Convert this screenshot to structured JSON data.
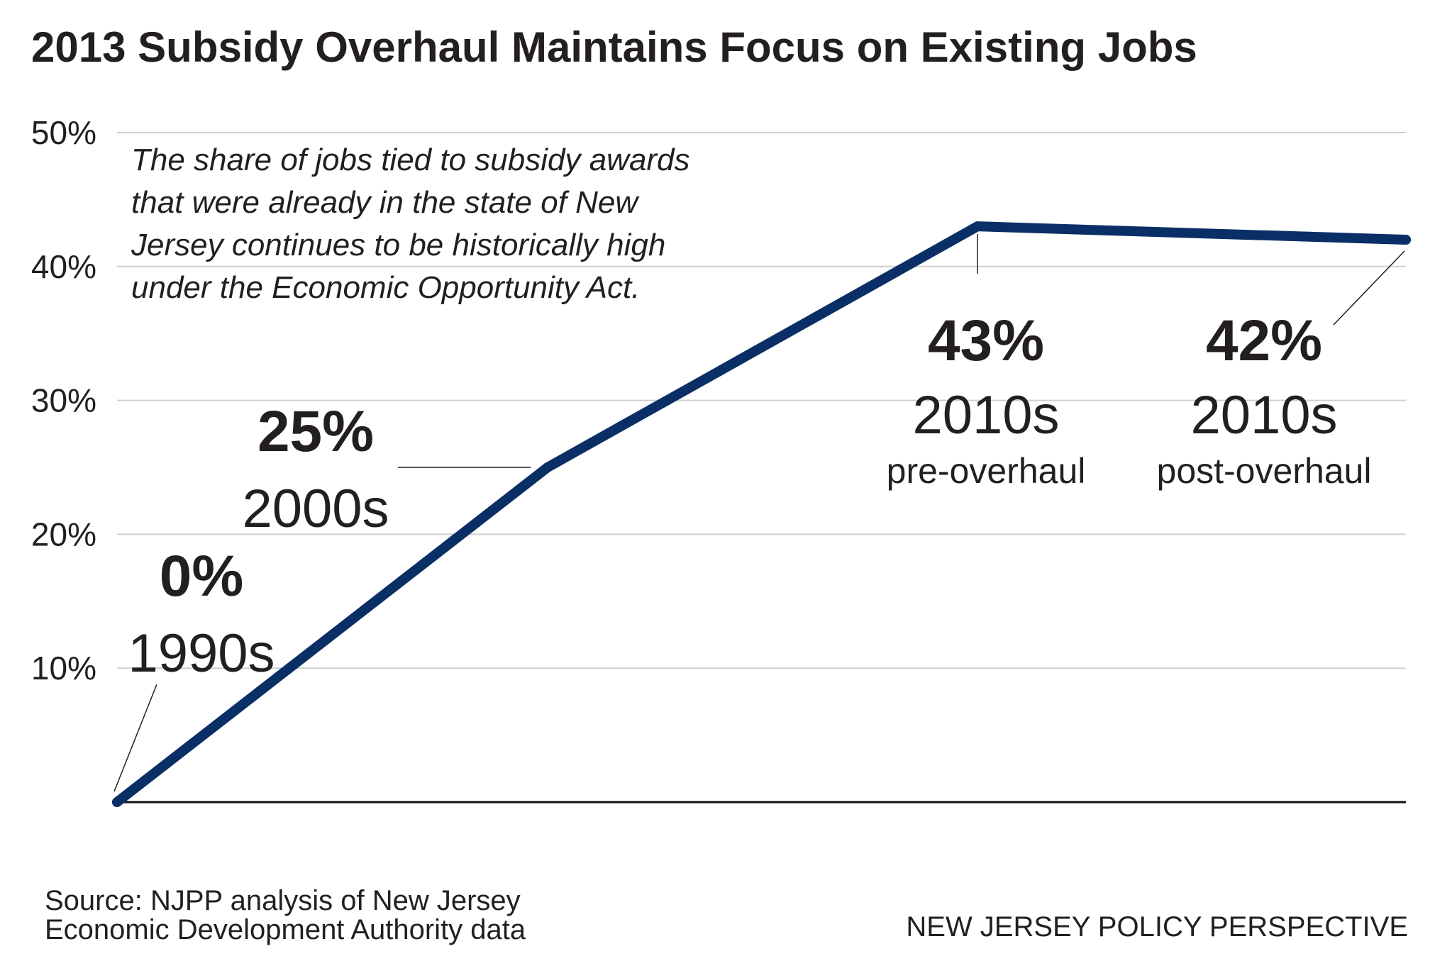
{
  "chart_data": {
    "type": "line",
    "title": "2013 Subsidy Overhaul Maintains Focus on Existing Jobs",
    "annotation": [
      "The share of jobs tied to subsidy awards",
      "that were already in the state of New",
      "Jersey continues to be historically high",
      "under the Economic Opportunity Act."
    ],
    "ylim": [
      0,
      50
    ],
    "y_ticks": [
      "10%",
      "20%",
      "30%",
      "40%",
      "50%"
    ],
    "y_tick_values": [
      10,
      20,
      30,
      40,
      50
    ],
    "grid": true,
    "line_color": "#0a2f66",
    "points": [
      {
        "value": 0,
        "value_label": "0%",
        "era": "1990s",
        "sub": ""
      },
      {
        "value": 25,
        "value_label": "25%",
        "era": "2000s",
        "sub": ""
      },
      {
        "value": 43,
        "value_label": "43%",
        "era": "2010s",
        "sub": "pre-overhaul"
      },
      {
        "value": 42,
        "value_label": "42%",
        "era": "2010s",
        "sub": "post-overhaul"
      }
    ]
  },
  "footer": {
    "source_line1": "Source: NJPP analysis of New Jersey",
    "source_line2": "Economic Development Authority data",
    "publisher": "NEW JERSEY POLICY PERSPECTIVE"
  }
}
